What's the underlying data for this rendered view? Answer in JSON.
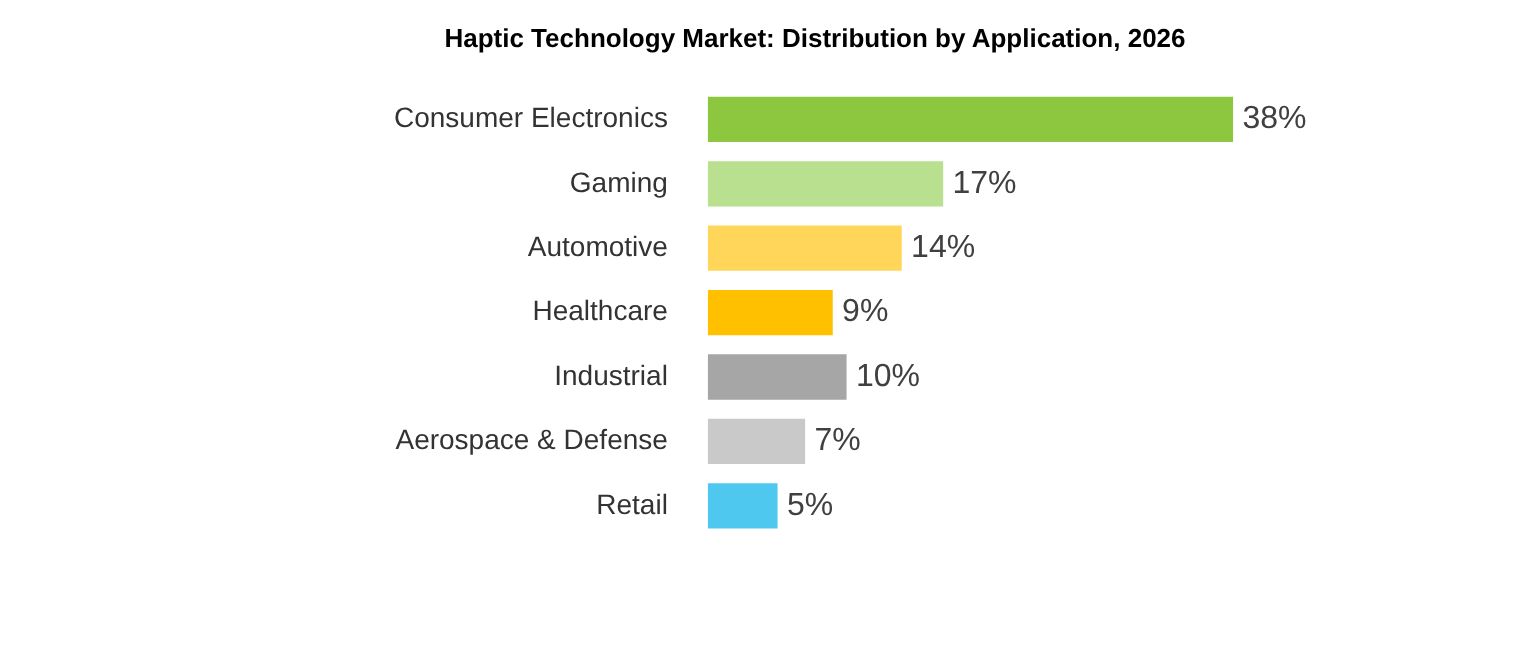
{
  "chart_data": {
    "type": "bar",
    "orientation": "horizontal",
    "title": "Haptic Technology Market: Distribution by Application, 2026",
    "categories": [
      "Consumer Electronics",
      "Gaming",
      "Automotive",
      "Healthcare",
      "Industrial",
      "Aerospace & Defense",
      "Retail"
    ],
    "values": [
      38,
      17,
      14,
      9,
      10,
      7,
      5
    ],
    "colors": [
      "#8dc63f",
      "#b8e08e",
      "#ffd659",
      "#ffc000",
      "#a6a6a6",
      "#c9c9c9",
      "#4fc8f0"
    ],
    "value_labels": [
      "38%",
      "17%",
      "14%",
      "9%",
      "10%",
      "7%",
      "5%"
    ],
    "legend": false
  }
}
